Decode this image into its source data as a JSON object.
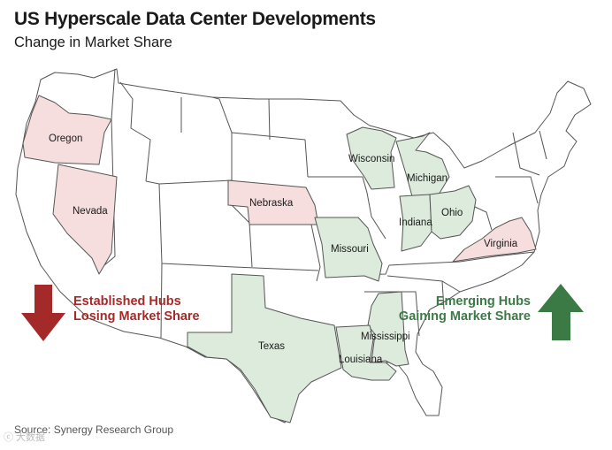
{
  "title": "US Hyperscale Data Center Developments",
  "subtitle": "Change in Market Share",
  "colors": {
    "losing_fill": "#f7dede",
    "gaining_fill": "#dcebdc",
    "neutral_fill": "#ffffff",
    "losing_text": "#a42a2a",
    "gaining_text": "#3b7a45",
    "arrow_down": "#a42a2a",
    "arrow_up": "#3b7a45"
  },
  "states_losing": [
    "Oregon",
    "Nevada",
    "Nebraska",
    "Virginia"
  ],
  "states_gaining": [
    "Wisconsin",
    "Michigan",
    "Indiana",
    "Ohio",
    "Missouri",
    "Mississippi",
    "Louisiana",
    "Texas"
  ],
  "legend": {
    "losing": {
      "line1": "Established Hubs",
      "line2": "Losing Market Share",
      "icon": "arrow-down-icon"
    },
    "gaining": {
      "line1": "Emerging Hubs",
      "line2": "Gaining Market Share",
      "icon": "arrow-up-icon"
    }
  },
  "source": "Source: Synergy Research Group",
  "watermark": "ⓒ 大数据"
}
